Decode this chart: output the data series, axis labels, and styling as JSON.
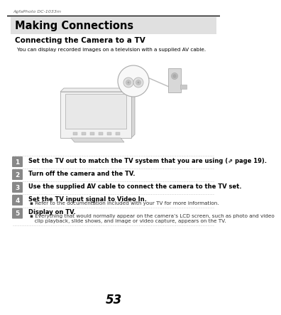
{
  "header_text": "AgfaPhoto DC-1033m",
  "section_title": "Making Connections",
  "subsection_title": "Connecting the Camera to a TV",
  "intro_text": "You can display recorded images on a television with a supplied AV cable.",
  "steps": [
    {
      "num": "1",
      "bold_text": "Set the TV out to match the TV system that you are using (⇗ page 19).",
      "sub_bullets": []
    },
    {
      "num": "2",
      "bold_text": "Turn off the camera and the TV.",
      "sub_bullets": []
    },
    {
      "num": "3",
      "bold_text": "Use the supplied AV cable to connect the camera to the TV set.",
      "sub_bullets": []
    },
    {
      "num": "4",
      "bold_text": "Set the TV input signal to Video In.",
      "sub_bullets": [
        "Refer to the documentation included with your TV for more information."
      ]
    },
    {
      "num": "5",
      "bold_text": "Display on TV.",
      "sub_bullets": [
        "Everything that would normally appear on the camera’s LCD screen, such as photo and video clip playback, slide shows, and image or video capture, appears on the TV."
      ]
    }
  ],
  "page_num": "53",
  "bg_color": "#ffffff",
  "header_bg": "#e0e0e0",
  "step_num_bg": "#888888",
  "step_num_color": "#ffffff",
  "text_color": "#000000",
  "sub_text_color": "#333333",
  "dot_line_color": "#bbbbbb",
  "header_line_color": "#000000",
  "illus_line_color": "#aaaaaa",
  "illus_fill": "#f4f4f4"
}
